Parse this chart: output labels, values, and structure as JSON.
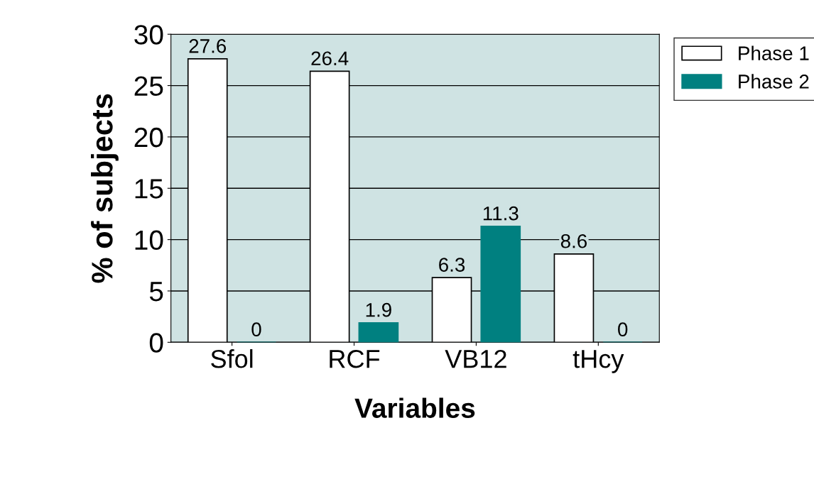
{
  "chart_data": {
    "type": "bar",
    "xlabel": "Variables",
    "ylabel": "% of subjects",
    "categories": [
      "Sfol",
      "RCF",
      "VB12",
      "tHcy"
    ],
    "series": [
      {
        "name": "Phase 1",
        "color": "#ffffff",
        "values": [
          27.6,
          26.4,
          6.3,
          8.6
        ]
      },
      {
        "name": "Phase 2",
        "color": "#008080",
        "values": [
          0,
          1.9,
          11.3,
          0
        ]
      }
    ],
    "ylim": [
      0,
      30
    ],
    "yticks": [
      0,
      5,
      10,
      15,
      20,
      25,
      30
    ],
    "grid": "y",
    "legend": "top right",
    "data_labels": true
  }
}
